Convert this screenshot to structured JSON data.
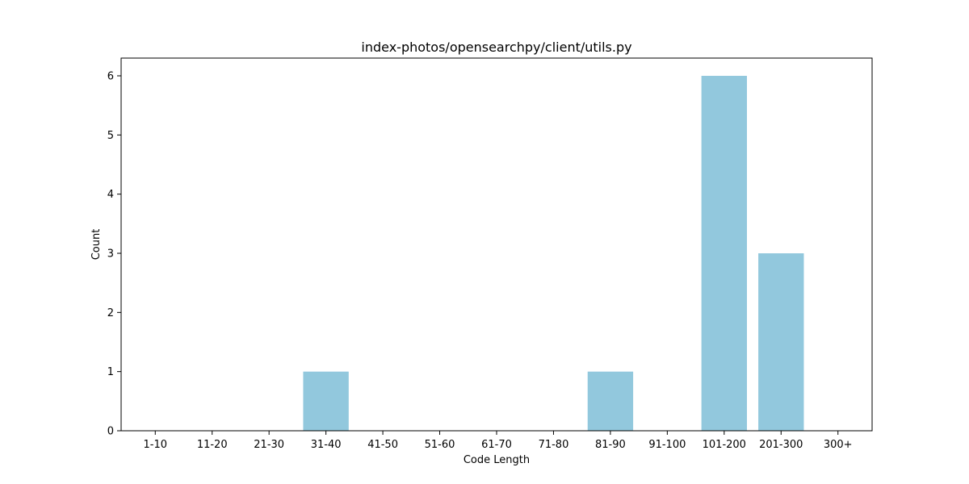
{
  "chart_data": {
    "type": "bar",
    "title": "index-photos/opensearchpy/client/utils.py",
    "xlabel": "Code Length",
    "ylabel": "Count",
    "categories": [
      "1-10",
      "11-20",
      "21-30",
      "31-40",
      "41-50",
      "51-60",
      "61-70",
      "71-80",
      "81-90",
      "91-100",
      "101-200",
      "201-300",
      "300+"
    ],
    "values": [
      0,
      0,
      0,
      1,
      0,
      0,
      0,
      0,
      1,
      0,
      6,
      3,
      0
    ],
    "ylim": [
      0,
      6.3
    ],
    "yticks": [
      "0",
      "1",
      "2",
      "3",
      "4",
      "5",
      "6"
    ],
    "bar_color": "#92c8dd",
    "grid": false,
    "legend": "none"
  }
}
